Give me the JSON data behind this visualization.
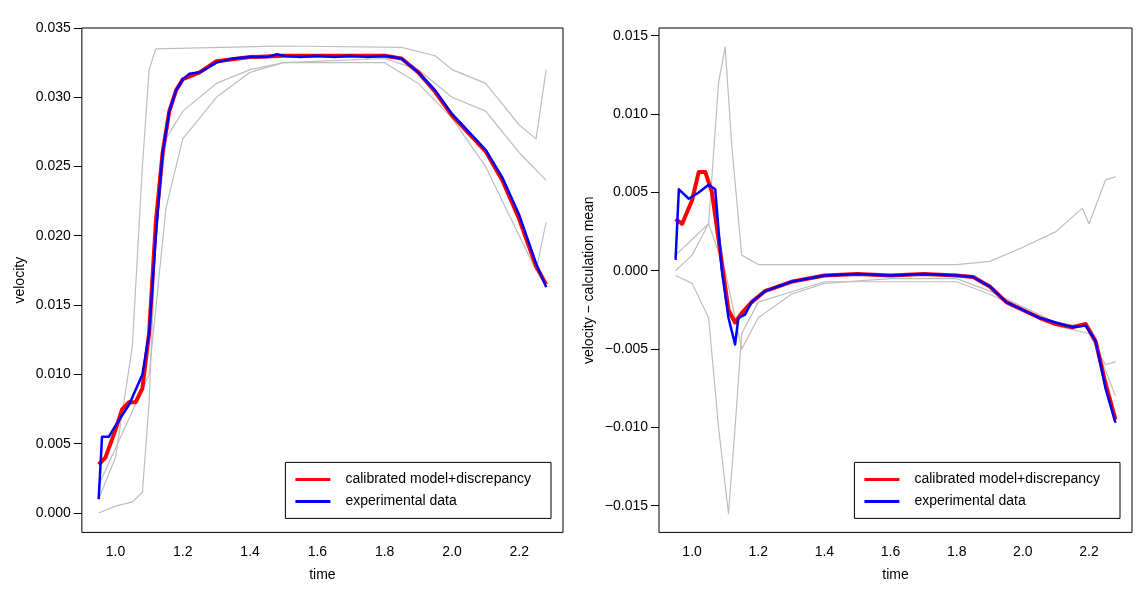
{
  "chart_data": [
    {
      "type": "line",
      "xlabel": "time",
      "ylabel": "velocity",
      "xlim": [
        0.9,
        2.33
      ],
      "ylim": [
        -0.0014,
        0.035
      ],
      "xticks": [
        {
          "value": 1,
          "label": "1.0"
        },
        {
          "value": 1.2,
          "label": "1.2"
        },
        {
          "value": 1.4,
          "label": "1.4"
        },
        {
          "value": 1.6,
          "label": "1.6"
        },
        {
          "value": 1.8,
          "label": "1.8"
        },
        {
          "value": 2,
          "label": "2.0"
        },
        {
          "value": 2.2,
          "label": "2.2"
        }
      ],
      "yticks": [
        {
          "value": 0,
          "label": "0.000"
        },
        {
          "value": 0.005,
          "label": "0.005"
        },
        {
          "value": 0.01,
          "label": "0.010"
        },
        {
          "value": 0.015,
          "label": "0.015"
        },
        {
          "value": 0.02,
          "label": "0.020"
        },
        {
          "value": 0.025,
          "label": "0.025"
        },
        {
          "value": 0.03,
          "label": "0.030"
        },
        {
          "value": 0.035,
          "label": "0.035"
        }
      ],
      "grid": false,
      "legend": "bottom right",
      "series": [
        {
          "color": "#bebebe",
          "x": [
            0.95,
            1.0,
            1.05,
            1.08,
            1.1,
            1.12,
            1.5,
            1.85,
            1.95,
            2.0,
            2.1,
            2.2,
            2.25,
            2.28
          ],
          "values": [
            0.001,
            0.004,
            0.012,
            0.025,
            0.032,
            0.0335,
            0.0337,
            0.0336,
            0.033,
            0.032,
            0.031,
            0.028,
            0.027,
            0.032
          ]
        },
        {
          "color": "#bebebe",
          "x": [
            0.95,
            1.0,
            1.05,
            1.08,
            1.1,
            1.12,
            1.15,
            1.2,
            1.3,
            1.4,
            1.5,
            1.8,
            1.9,
            2.0,
            2.1,
            2.2,
            2.25,
            2.28
          ],
          "values": [
            0,
            0.0005,
            0.0008,
            0.0015,
            0.008,
            0.02,
            0.027,
            0.029,
            0.031,
            0.032,
            0.0325,
            0.0325,
            0.031,
            0.0285,
            0.025,
            0.02,
            0.0175,
            0.021
          ]
        },
        {
          "color": "#bebebe",
          "x": [
            0.95,
            1.1,
            1.15,
            1.2,
            1.3,
            1.4,
            1.5,
            1.8,
            1.9,
            2.0,
            2.1,
            2.2,
            2.28
          ],
          "values": [
            0.002,
            0.01,
            0.022,
            0.027,
            0.03,
            0.0318,
            0.0325,
            0.0328,
            0.032,
            0.03,
            0.029,
            0.026,
            0.024
          ]
        },
        {
          "name": "calibrated model+discrepancy",
          "color": "#ff0000",
          "x": [
            0.95,
            0.97,
            1.0,
            1.02,
            1.04,
            1.06,
            1.08,
            1.1,
            1.12,
            1.14,
            1.16,
            1.18,
            1.2,
            1.25,
            1.3,
            1.4,
            1.5,
            1.6,
            1.7,
            1.8,
            1.85,
            1.9,
            1.95,
            2.0,
            2.05,
            2.1,
            2.15,
            2.2,
            2.25,
            2.28
          ],
          "values": [
            0.0035,
            0.004,
            0.006,
            0.0075,
            0.008,
            0.008,
            0.009,
            0.013,
            0.021,
            0.026,
            0.029,
            0.0305,
            0.0313,
            0.0318,
            0.0326,
            0.0329,
            0.033,
            0.033,
            0.033,
            0.033,
            0.0328,
            0.0318,
            0.0304,
            0.0287,
            0.0274,
            0.0261,
            0.024,
            0.0212,
            0.0178,
            0.0165
          ]
        },
        {
          "name": "experimental data",
          "color": "#0000ff",
          "x": [
            0.95,
            0.96,
            0.98,
            1.0,
            1.04,
            1.08,
            1.1,
            1.12,
            1.14,
            1.16,
            1.18,
            1.2,
            1.22,
            1.25,
            1.3,
            1.35,
            1.4,
            1.45,
            1.48,
            1.5,
            1.55,
            1.6,
            1.65,
            1.7,
            1.75,
            1.8,
            1.85,
            1.9,
            1.95,
            2.0,
            2.05,
            2.1,
            2.15,
            2.2,
            2.25,
            2.28
          ],
          "values": [
            0.001,
            0.0055,
            0.0055,
            0.0063,
            0.0078,
            0.01,
            0.013,
            0.02,
            0.026,
            0.029,
            0.0305,
            0.0313,
            0.0317,
            0.0318,
            0.0325,
            0.0328,
            0.0329,
            0.0329,
            0.0331,
            0.033,
            0.0329,
            0.033,
            0.0329,
            0.033,
            0.0329,
            0.033,
            0.0328,
            0.0318,
            0.0305,
            0.0288,
            0.0275,
            0.0262,
            0.0242,
            0.0215,
            0.018,
            0.0163
          ]
        }
      ]
    },
    {
      "type": "line",
      "xlabel": "time",
      "ylabel": "velocity − calculation mean",
      "xlim": [
        0.9,
        2.33
      ],
      "ylim": [
        -0.0167,
        0.0155
      ],
      "xticks": [
        {
          "value": 1,
          "label": "1.0"
        },
        {
          "value": 1.2,
          "label": "1.2"
        },
        {
          "value": 1.4,
          "label": "1.4"
        },
        {
          "value": 1.6,
          "label": "1.6"
        },
        {
          "value": 1.8,
          "label": "1.8"
        },
        {
          "value": 2,
          "label": "2.0"
        },
        {
          "value": 2.2,
          "label": "2.2"
        }
      ],
      "yticks": [
        {
          "value": -0.015,
          "label": "−0.015"
        },
        {
          "value": -0.01,
          "label": "−0.010"
        },
        {
          "value": -0.005,
          "label": "−0.005"
        },
        {
          "value": 0,
          "label": "0.000"
        },
        {
          "value": 0.005,
          "label": "0.005"
        },
        {
          "value": 0.01,
          "label": "0.010"
        },
        {
          "value": 0.015,
          "label": "0.015"
        }
      ],
      "grid": false,
      "legend": "bottom right",
      "series": [
        {
          "color": "#bebebe",
          "x": [
            0.95,
            1.0,
            1.05,
            1.08,
            1.1,
            1.12,
            1.15,
            1.2,
            1.8,
            1.9,
            2.0,
            2.1,
            2.18,
            2.2,
            2.25,
            2.28
          ],
          "values": [
            0,
            0.001,
            0.003,
            0.012,
            0.0143,
            0.008,
            0.001,
            0.0004,
            0.0004,
            0.0006,
            0.0015,
            0.0025,
            0.004,
            0.003,
            0.0058,
            0.006
          ]
        },
        {
          "color": "#bebebe",
          "x": [
            0.95,
            1.0,
            1.05,
            1.08,
            1.11,
            1.13,
            1.15,
            1.2,
            1.4,
            1.8,
            1.9,
            2.0,
            2.1,
            2.2,
            2.25,
            2.28
          ],
          "values": [
            -0.0003,
            -0.0008,
            -0.003,
            -0.01,
            -0.0155,
            -0.01,
            -0.004,
            -0.002,
            -0.0007,
            -0.0007,
            -0.0015,
            -0.0025,
            -0.0035,
            -0.004,
            -0.006,
            -0.0058
          ]
        },
        {
          "color": "#bebebe",
          "x": [
            0.95,
            1.05,
            1.1,
            1.15,
            1.2,
            1.3,
            1.4,
            1.6,
            1.8,
            1.9,
            2.0,
            2.1,
            2.2,
            2.28
          ],
          "values": [
            0.001,
            0.003,
            0,
            -0.005,
            -0.003,
            -0.0015,
            -0.0008,
            -0.0005,
            -0.0005,
            -0.0013,
            -0.0023,
            -0.0033,
            -0.0036,
            -0.008
          ]
        },
        {
          "name": "calibrated model+discrepancy",
          "color": "#ff0000",
          "x": [
            0.95,
            0.97,
            1.0,
            1.02,
            1.04,
            1.06,
            1.09,
            1.11,
            1.13,
            1.15,
            1.18,
            1.22,
            1.3,
            1.4,
            1.5,
            1.6,
            1.7,
            1.8,
            1.85,
            1.9,
            1.95,
            2.0,
            2.05,
            2.1,
            2.15,
            2.19,
            2.22,
            2.25,
            2.28
          ],
          "values": [
            0.0033,
            0.003,
            0.0045,
            0.0063,
            0.0063,
            0.005,
            0.0005,
            -0.0025,
            -0.0033,
            -0.0027,
            -0.002,
            -0.0013,
            -0.0007,
            -0.0003,
            -0.0002,
            -0.0003,
            -0.0002,
            -0.0003,
            -0.0004,
            -0.001,
            -0.002,
            -0.0025,
            -0.003,
            -0.0034,
            -0.0036,
            -0.0034,
            -0.0045,
            -0.0072,
            -0.0095
          ]
        },
        {
          "name": "experimental data",
          "color": "#0000ff",
          "x": [
            0.95,
            0.96,
            0.99,
            1.02,
            1.05,
            1.07,
            1.09,
            1.11,
            1.13,
            1.14,
            1.16,
            1.18,
            1.22,
            1.3,
            1.4,
            1.5,
            1.6,
            1.7,
            1.8,
            1.85,
            1.9,
            1.95,
            2.0,
            2.05,
            2.1,
            2.15,
            2.19,
            2.22,
            2.25,
            2.28
          ],
          "values": [
            0.0007,
            0.0052,
            0.0046,
            0.005,
            0.0055,
            0.0052,
            0,
            -0.003,
            -0.0047,
            -0.003,
            -0.0028,
            -0.002,
            -0.0013,
            -0.0007,
            -0.0003,
            -0.0002,
            -0.0003,
            -0.0002,
            -0.0003,
            -0.0004,
            -0.001,
            -0.002,
            -0.0025,
            -0.003,
            -0.0033,
            -0.0036,
            -0.0035,
            -0.0045,
            -0.0075,
            -0.0097
          ]
        }
      ]
    }
  ]
}
